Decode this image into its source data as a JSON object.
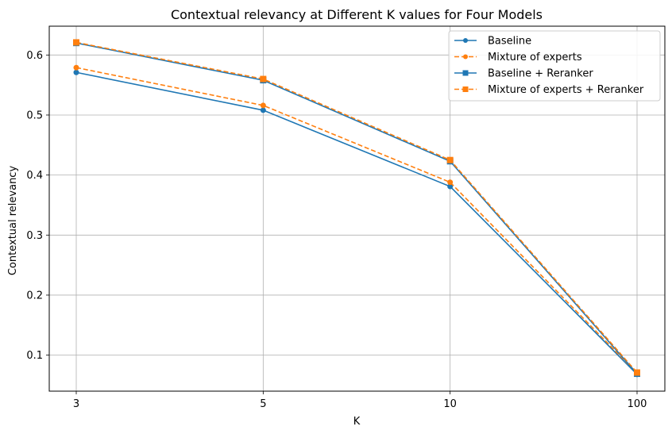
{
  "chart_data": {
    "type": "line",
    "title": "Contextual relevancy at Different K values for Four Models",
    "xlabel": "K",
    "ylabel": "Contextual relevancy",
    "categories": [
      "3",
      "5",
      "10",
      "100"
    ],
    "ylim": [
      0.04,
      0.648
    ],
    "yticks": [
      "0.1",
      "0.2",
      "0.3",
      "0.4",
      "0.5",
      "0.6"
    ],
    "grid": true,
    "legend_position": "top-right",
    "series": [
      {
        "name": "Baseline",
        "values": [
          0.571,
          0.508,
          0.381,
          0.068
        ],
        "color": "#1f77b4",
        "line_style": "solid",
        "marker": "circle"
      },
      {
        "name": "Mixture of experts",
        "values": [
          0.579,
          0.516,
          0.388,
          0.07
        ],
        "color": "#ff7f0e",
        "line_style": "dashed",
        "marker": "circle"
      },
      {
        "name": "Baseline + Reranker",
        "values": [
          0.62,
          0.558,
          0.423,
          0.069
        ],
        "color": "#1f77b4",
        "line_style": "solid",
        "marker": "square"
      },
      {
        "name": "Mixture of experts + Reranker",
        "values": [
          0.621,
          0.56,
          0.425,
          0.071
        ],
        "color": "#ff7f0e",
        "line_style": "dashed",
        "marker": "square"
      }
    ]
  }
}
